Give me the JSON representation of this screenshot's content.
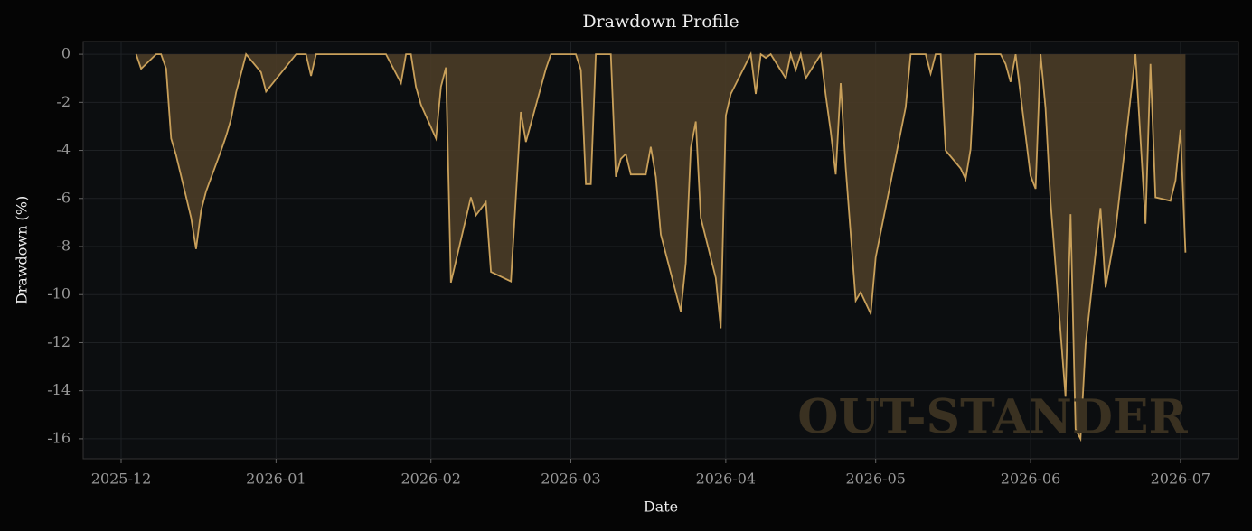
{
  "chart_data": {
    "type": "area",
    "title": "Drawdown Profile",
    "xlabel": "Date",
    "ylabel": "Drawdown (%)",
    "watermark": "OUT-STANDER",
    "x": [
      3,
      4,
      7,
      8,
      9,
      10,
      11,
      14,
      15,
      16,
      17,
      20,
      21,
      22,
      23,
      25,
      28,
      29,
      35,
      37,
      38,
      39,
      53,
      56,
      57,
      58,
      59,
      60,
      63,
      64,
      65,
      66,
      70,
      71,
      73,
      74,
      78,
      80,
      81,
      85,
      86,
      91,
      92,
      93,
      94,
      95,
      98,
      99,
      100,
      101,
      102,
      105,
      106,
      107,
      108,
      112,
      113,
      114,
      115,
      116,
      119,
      120,
      121,
      122,
      126,
      127,
      128,
      129,
      130,
      133,
      134,
      135,
      136,
      137,
      140,
      141,
      142,
      143,
      144,
      145,
      147,
      148,
      150,
      151,
      157,
      158,
      161,
      162,
      163,
      164,
      165,
      168,
      169,
      170,
      171,
      176,
      177,
      178,
      179,
      182,
      183,
      184,
      185,
      186,
      189,
      190,
      191,
      192,
      193,
      196,
      197,
      199,
      203,
      205,
      206,
      207,
      210,
      211,
      212,
      213
    ],
    "values": [
      0,
      -0.6,
      0,
      0,
      -0.6,
      -3.5,
      -4.2,
      -6.8,
      -8.1,
      -6.5,
      -5.7,
      -4,
      -3.4,
      -2.7,
      -1.6,
      0,
      -0.75,
      -1.55,
      0,
      0,
      -0.9,
      0,
      0,
      -1.2,
      0,
      0,
      -1.35,
      -2.1,
      -3.5,
      -1.35,
      -0.55,
      -9.5,
      -5.95,
      -6.7,
      -6.15,
      -9.05,
      -9.45,
      -2.4,
      -3.65,
      -0.6,
      0,
      0,
      -0.65,
      -5.4,
      -5.4,
      0,
      0,
      -5.1,
      -4.35,
      -4.15,
      -5,
      -5,
      -3.85,
      -5.1,
      -7.5,
      -10.7,
      -8.7,
      -3.9,
      -2.8,
      -6.8,
      -9.3,
      -11.4,
      -2.55,
      -1.65,
      0,
      -1.65,
      0,
      -0.15,
      0,
      -1,
      0,
      -0.65,
      0,
      -1,
      0,
      -1.7,
      -3.2,
      -5,
      -1.2,
      -4.7,
      -10.25,
      -9.9,
      -10.8,
      -8.45,
      -2.2,
      0,
      0,
      -0.8,
      0,
      0,
      -4,
      -4.75,
      -5.2,
      -3.95,
      0,
      0,
      -0.4,
      -1.15,
      0,
      -5.05,
      -5.6,
      0,
      -2.25,
      -6.15,
      -14.25,
      -6.65,
      -15.6,
      -16,
      -12.1,
      -6.4,
      -9.7,
      -7.35,
      0,
      -7.05,
      -0.4,
      -5.95,
      -6.1,
      -5.25,
      -3.15,
      -8.25
    ],
    "color": "#c9a05a",
    "fill_color": "#4a3c27",
    "xlim": [
      -7.6,
      223.6
    ],
    "ylim": [
      -16.83,
      0.53
    ],
    "xticks": [
      {
        "value": 0,
        "label": "2025-12"
      },
      {
        "value": 31,
        "label": "2026-01"
      },
      {
        "value": 62,
        "label": "2026-02"
      },
      {
        "value": 90,
        "label": "2026-03"
      },
      {
        "value": 121,
        "label": "2026-04"
      },
      {
        "value": 151,
        "label": "2026-05"
      },
      {
        "value": 182,
        "label": "2026-06"
      },
      {
        "value": 212,
        "label": "2026-07"
      }
    ],
    "yticks": [
      0,
      -2,
      -4,
      -6,
      -8,
      -10,
      -12,
      -14,
      -16
    ],
    "grid": true
  }
}
